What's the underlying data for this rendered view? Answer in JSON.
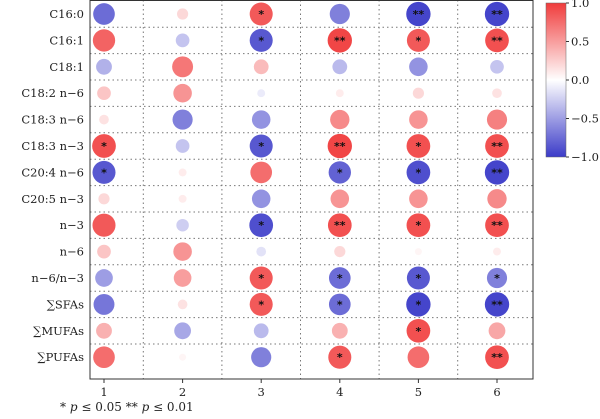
{
  "chart_data": {
    "type": "heatmap",
    "rows": [
      "C16:0",
      "C16:1",
      "C18:1",
      "C18:2 n−6",
      "C18:3 n−6",
      "C18:3 n−3",
      "C20:4 n−6",
      "C20:5 n−3",
      "n−3",
      "n−6",
      "n−6/n−3",
      "∑SFAs",
      "∑MUFAs",
      "∑PUFAs"
    ],
    "columns": [
      "1",
      "2",
      "3",
      "4",
      "5",
      "6"
    ],
    "values": [
      [
        -0.75,
        0.2,
        0.85,
        -0.65,
        -0.95,
        -0.95
      ],
      [
        0.8,
        -0.3,
        -0.85,
        0.95,
        0.85,
        0.9
      ],
      [
        -0.4,
        0.7,
        0.35,
        -0.35,
        -0.55,
        -0.3
      ],
      [
        0.3,
        0.55,
        -0.1,
        0.1,
        0.2,
        0.15
      ],
      [
        0.15,
        -0.65,
        -0.55,
        0.6,
        0.55,
        0.65
      ],
      [
        0.9,
        -0.3,
        -0.85,
        0.95,
        0.9,
        0.9
      ],
      [
        -0.85,
        0.1,
        0.75,
        -0.8,
        -0.9,
        -0.95
      ],
      [
        0.2,
        0.1,
        -0.55,
        0.55,
        0.55,
        0.6
      ],
      [
        0.85,
        -0.25,
        -0.9,
        0.9,
        0.9,
        0.9
      ],
      [
        0.3,
        0.55,
        -0.15,
        0.2,
        0.05,
        0.1
      ],
      [
        -0.5,
        0.5,
        0.85,
        -0.75,
        -0.85,
        -0.65
      ],
      [
        -0.7,
        0.15,
        0.85,
        -0.75,
        -0.95,
        -0.95
      ],
      [
        0.4,
        -0.45,
        -0.35,
        0.4,
        0.9,
        0.45
      ],
      [
        0.75,
        0.05,
        -0.65,
        0.85,
        0.75,
        0.9
      ]
    ],
    "significance": [
      [
        "",
        "",
        "*",
        "",
        "**",
        "**"
      ],
      [
        "",
        "",
        "*",
        "**",
        "*",
        "**"
      ],
      [
        "",
        "",
        "",
        "",
        "",
        ""
      ],
      [
        "",
        "",
        "",
        "",
        "",
        ""
      ],
      [
        "",
        "",
        "",
        "",
        "",
        ""
      ],
      [
        "*",
        "",
        "*",
        "**",
        "*",
        "**"
      ],
      [
        "*",
        "",
        "",
        "*",
        "*",
        "**"
      ],
      [
        "",
        "",
        "",
        "",
        "",
        ""
      ],
      [
        "",
        "",
        "*",
        "**",
        "*",
        "**"
      ],
      [
        "",
        "",
        "",
        "",
        "",
        ""
      ],
      [
        "",
        "",
        "*",
        "*",
        "*",
        "*"
      ],
      [
        "",
        "",
        "*",
        "*",
        "*",
        "**"
      ],
      [
        "",
        "",
        "",
        "",
        "*",
        ""
      ],
      [
        "",
        "",
        "",
        "*",
        "",
        "**"
      ]
    ],
    "colorbar": {
      "min": -1.0,
      "max": 1.0,
      "ticks": [
        "1.0",
        "0.5",
        "0.0",
        "−0.5",
        "−1.0"
      ],
      "tick_values": [
        1.0,
        0.5,
        0.0,
        -0.5,
        -1.0
      ]
    },
    "colors": {
      "negative": "#3b3bc8",
      "neutral": "#ffffff",
      "positive": "#f03c3c"
    },
    "grid": true
  },
  "footnote": {
    "star1": "*",
    "p1": "p",
    "text1": " ≤ 0.05  ",
    "star2": "**",
    "p2": "p",
    "text2": " ≤ 0.01"
  }
}
